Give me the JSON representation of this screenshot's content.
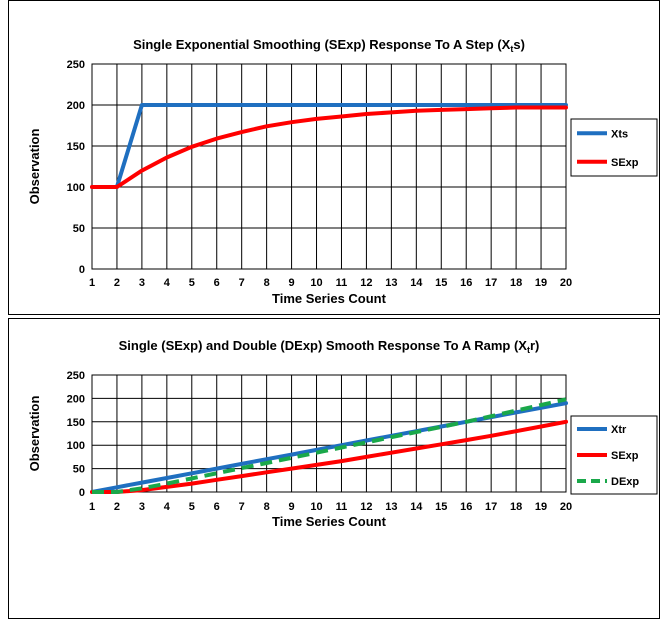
{
  "chart_data": [
    {
      "type": "line",
      "title_parts": [
        "Single Exponential Smoothing (SExp) Response To A Step (X",
        "t",
        "s)"
      ],
      "xlabel": "Time Series Count",
      "ylabel": "Observation",
      "x": [
        1,
        2,
        3,
        4,
        5,
        6,
        7,
        8,
        9,
        10,
        11,
        12,
        13,
        14,
        15,
        16,
        17,
        18,
        19,
        20
      ],
      "xlim": [
        1,
        20
      ],
      "ylim": [
        0,
        250
      ],
      "yticks": [
        0,
        50,
        100,
        150,
        200,
        250
      ],
      "grid": true,
      "legend_position": "right",
      "series": [
        {
          "name": "Xts",
          "color": "#1f6fc0",
          "dash": false,
          "values": [
            100,
            100,
            200,
            200,
            200,
            200,
            200,
            200,
            200,
            200,
            200,
            200,
            200,
            200,
            200,
            200,
            200,
            200,
            200,
            200
          ]
        },
        {
          "name": "SExp",
          "color": "#ff0000",
          "dash": false,
          "values": [
            100,
            100,
            120,
            136,
            149,
            159,
            167,
            174,
            179,
            183,
            186,
            189,
            191,
            193,
            194,
            195,
            196,
            197,
            197,
            197
          ]
        }
      ]
    },
    {
      "type": "line",
      "title_parts": [
        "Single (SExp) and Double (DExp) Smooth Response To A Ramp (X",
        "t",
        "r)"
      ],
      "xlabel": "Time Series Count",
      "ylabel": "Observation",
      "x": [
        1,
        2,
        3,
        4,
        5,
        6,
        7,
        8,
        9,
        10,
        11,
        12,
        13,
        14,
        15,
        16,
        17,
        18,
        19,
        20
      ],
      "xlim": [
        1,
        20
      ],
      "ylim": [
        0,
        250
      ],
      "yticks": [
        0,
        50,
        100,
        150,
        200,
        250
      ],
      "grid": true,
      "legend_position": "right",
      "series": [
        {
          "name": "Xtr",
          "color": "#1f6fc0",
          "dash": false,
          "values": [
            0,
            10,
            20,
            30,
            40,
            50,
            60,
            70,
            80,
            90,
            100,
            110,
            120,
            130,
            140,
            150,
            160,
            170,
            180,
            190
          ]
        },
        {
          "name": "SExp",
          "color": "#ff0000",
          "dash": false,
          "values": [
            0,
            0,
            4,
            11,
            18,
            26,
            34,
            42,
            50,
            58,
            66,
            75,
            84,
            93,
            102,
            111,
            120,
            130,
            140,
            150
          ]
        },
        {
          "name": "DExp",
          "color": "#1aa84a",
          "dash": true,
          "values": [
            0,
            0,
            8,
            18,
            29,
            40,
            51,
            62,
            73,
            84,
            95,
            106,
            117,
            128,
            139,
            150,
            162,
            174,
            186,
            198
          ]
        }
      ]
    }
  ]
}
